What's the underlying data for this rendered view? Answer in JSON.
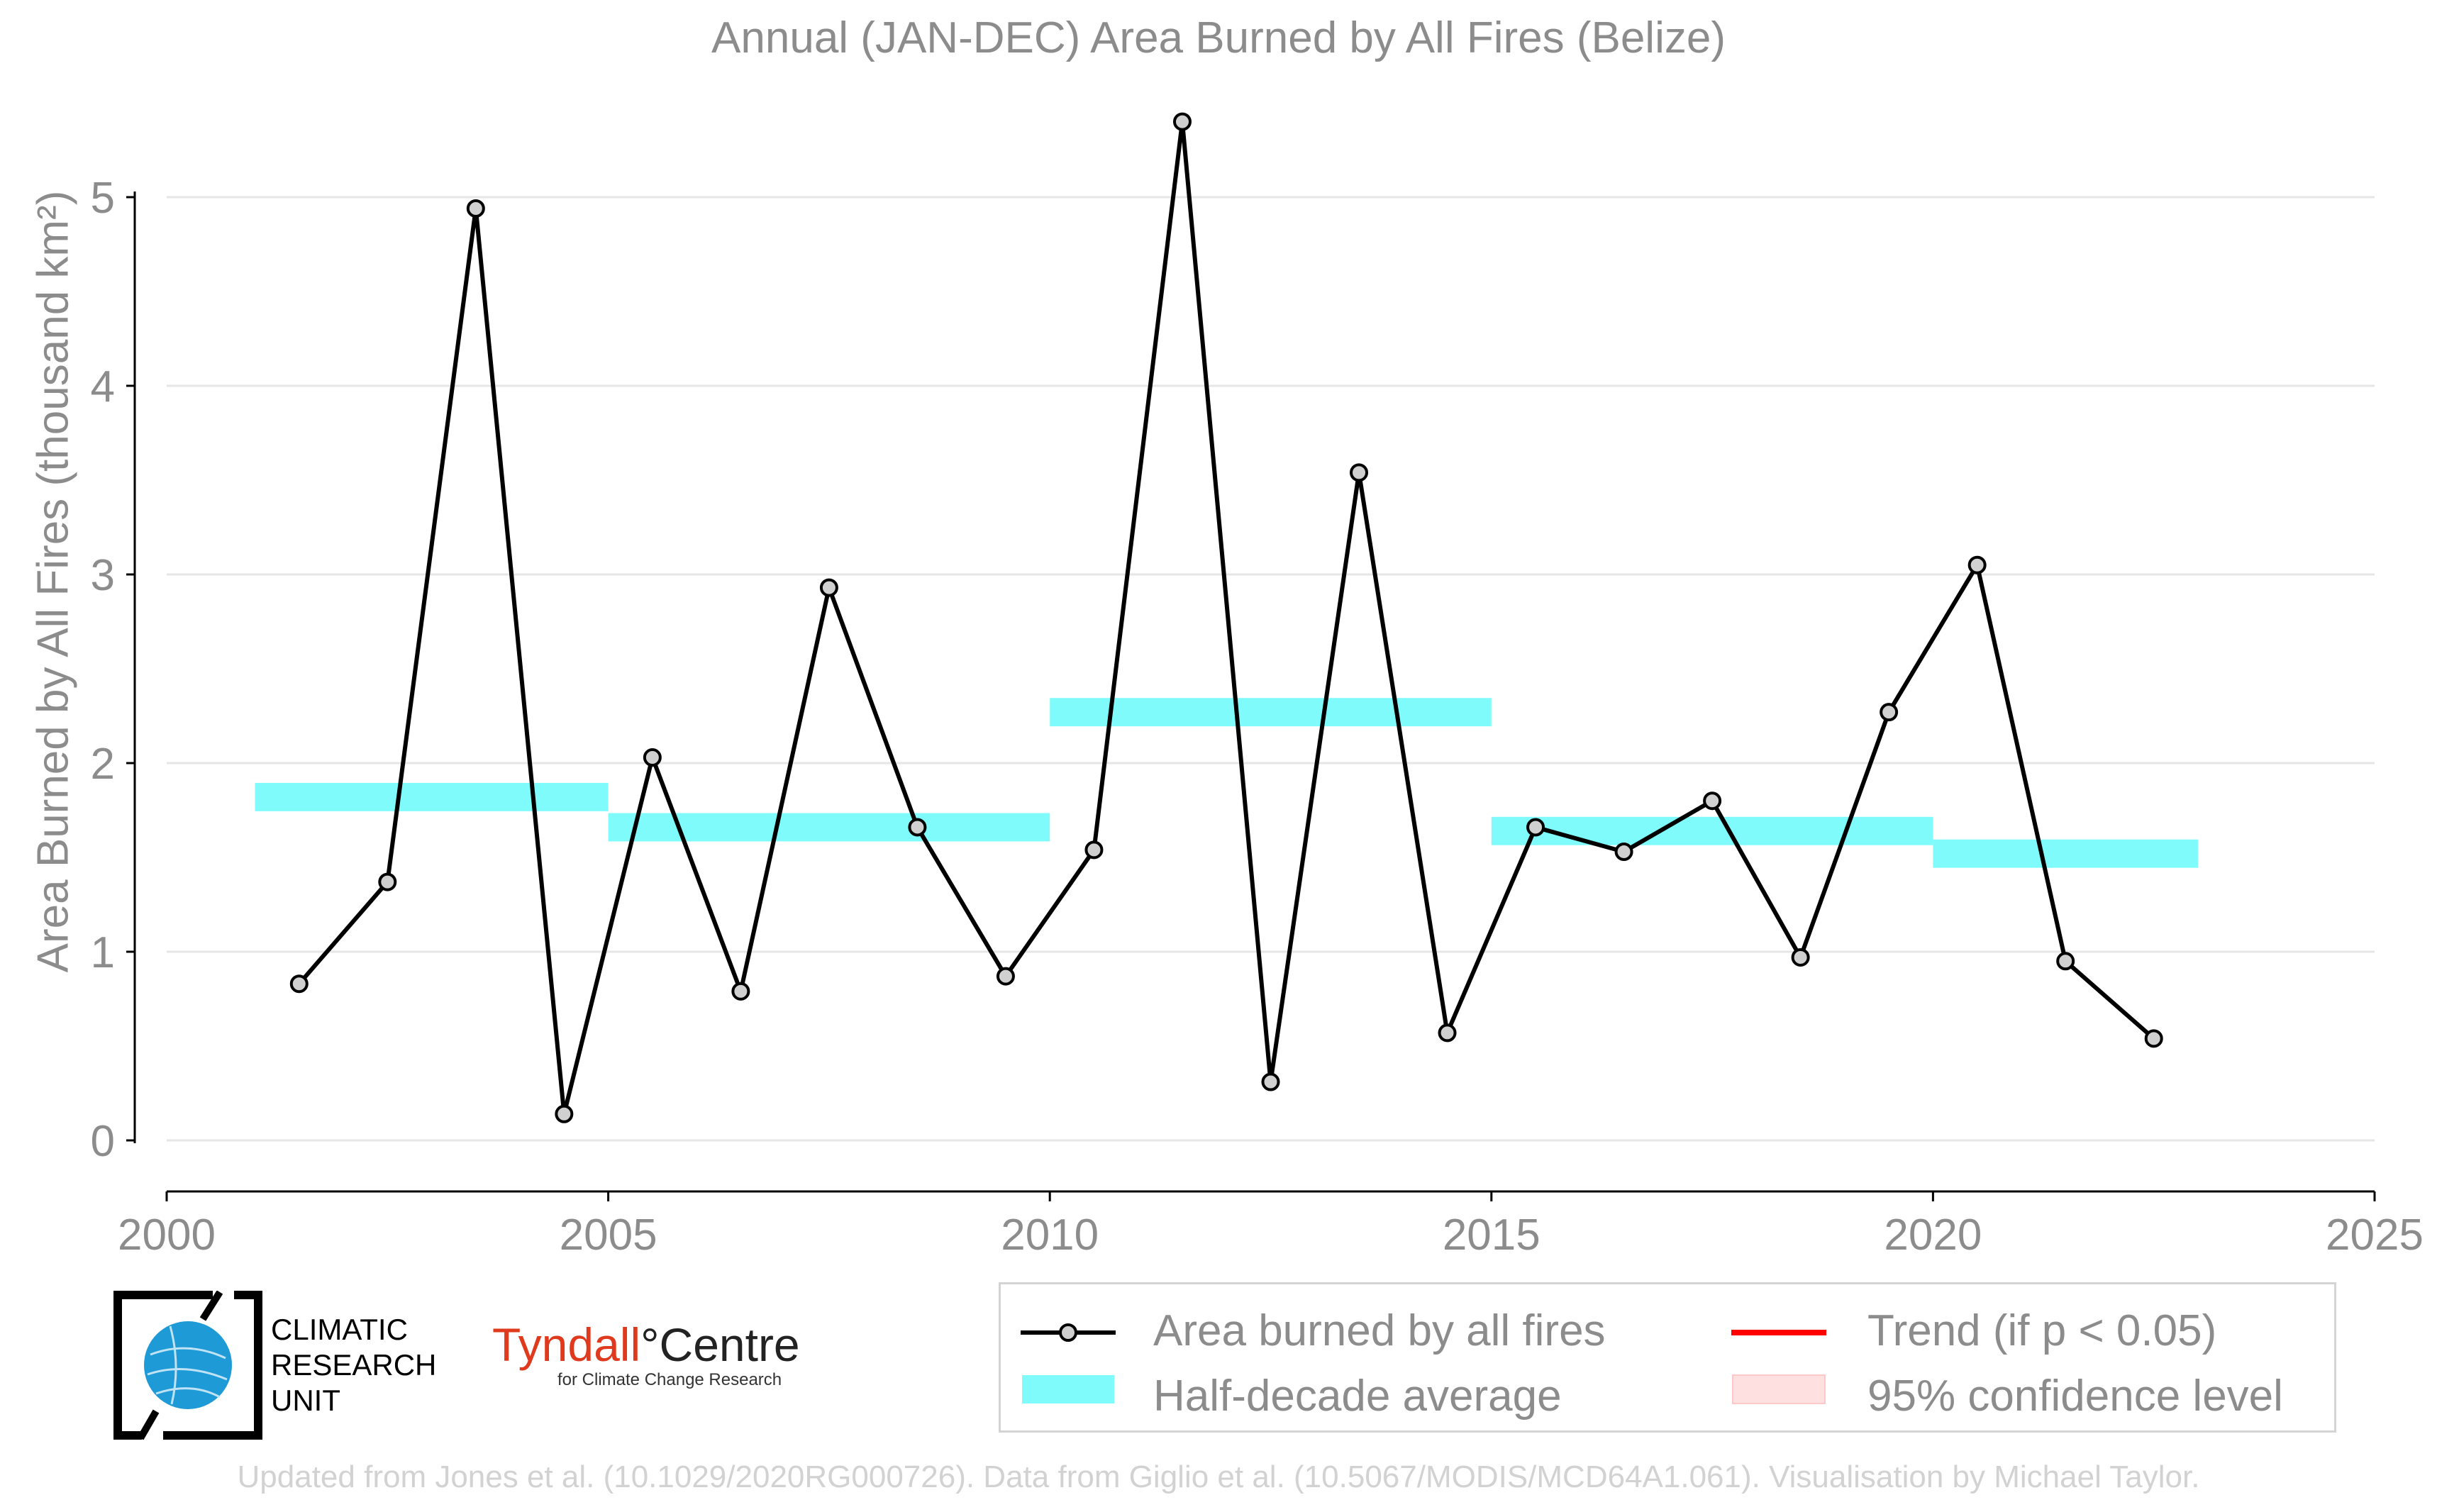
{
  "chart_data": {
    "type": "line",
    "title": "Annual (JAN-DEC) Area Burned by All Fires (Belize)",
    "ylabel": "Area Burned by All Fires (thousand km²)",
    "xlabel": "",
    "xlim": [
      2000,
      2025
    ],
    "ylim": [
      -0.25,
      5.5
    ],
    "x_ticks": [
      2000,
      2005,
      2010,
      2015,
      2020,
      2025
    ],
    "y_ticks": [
      0,
      1,
      2,
      3,
      4,
      5
    ],
    "grid": "horizontal",
    "legend_position": "bottom-right",
    "series": [
      {
        "name": "Area burned by all fires",
        "color": "#000000",
        "marker_color": "#d0d0d0",
        "x": [
          2001.5,
          2002.5,
          2003.5,
          2004.5,
          2005.5,
          2006.5,
          2007.5,
          2008.5,
          2009.5,
          2010.5,
          2011.5,
          2012.5,
          2013.5,
          2014.5,
          2015.5,
          2016.5,
          2017.5,
          2018.5,
          2019.5,
          2020.5,
          2021.5,
          2022.5
        ],
        "y": [
          0.83,
          1.37,
          4.94,
          0.14,
          2.03,
          0.79,
          2.93,
          1.66,
          0.87,
          1.54,
          5.4,
          0.31,
          3.54,
          0.57,
          1.66,
          1.53,
          1.8,
          0.97,
          2.27,
          3.05,
          0.95,
          0.54
        ]
      }
    ],
    "half_decade_average": {
      "name": "Half-decade average",
      "color": "#7ffbfb",
      "segments": [
        {
          "x_start": 2001,
          "x_end": 2005,
          "value": 1.82
        },
        {
          "x_start": 2005,
          "x_end": 2010,
          "value": 1.66
        },
        {
          "x_start": 2010,
          "x_end": 2015,
          "value": 2.27
        },
        {
          "x_start": 2015,
          "x_end": 2020,
          "value": 1.64
        },
        {
          "x_start": 2020,
          "x_end": 2023,
          "value": 1.52
        }
      ]
    },
    "legend": [
      {
        "label": "Area burned by all fires",
        "kind": "line-marker",
        "color": "#000000"
      },
      {
        "label": "Trend (if p < 0.05)",
        "kind": "line",
        "color": "#ff0000"
      },
      {
        "label": "Half-decade average",
        "kind": "band",
        "color": "#7ffbfb"
      },
      {
        "label": "95% confidence level",
        "kind": "band",
        "color": "#ffe0e0"
      }
    ]
  },
  "logos": {
    "cru_lines": [
      "CLIMATIC",
      "RESEARCH",
      "UNIT"
    ],
    "tyndall_main": "Tyndall",
    "tyndall_degree": "°",
    "tyndall_centre": "Centre",
    "tyndall_sub": "for Climate Change Research"
  },
  "credit": "Updated from Jones et al. (10.1029/2020RG000726). Data from Giglio et al. (10.5067/MODIS/MCD64A1.061). Visualisation by Michael Taylor."
}
